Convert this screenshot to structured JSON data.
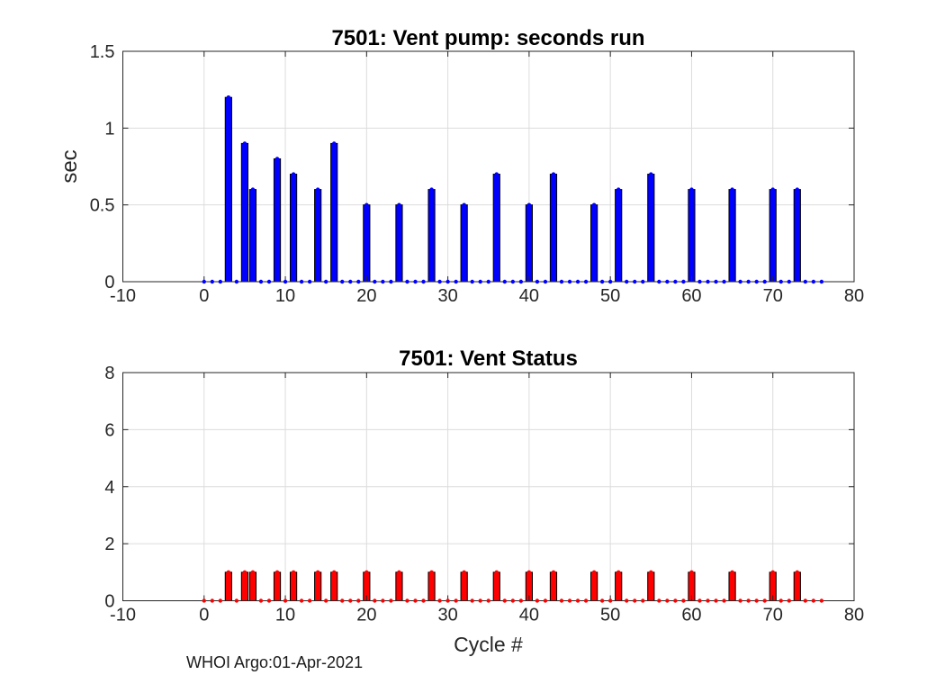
{
  "figure": {
    "footer": "WHOI Argo:01-Apr-2021",
    "background_color": "#ffffff",
    "axis_color": "#262626",
    "grid_color": "#dcdcdc",
    "text_color": "#262626"
  },
  "chart_data": [
    {
      "type": "bar",
      "name": "vent-pump-chart",
      "title": "7501: Vent pump: seconds run",
      "ylabel": "sec",
      "xlim": [
        -10,
        80
      ],
      "ylim": [
        0,
        1.5
      ],
      "xtick_values": [
        -10,
        0,
        10,
        20,
        30,
        40,
        50,
        60,
        70,
        80
      ],
      "xtick_labels": [
        "-10",
        "0",
        "10",
        "20",
        "30",
        "40",
        "50",
        "60",
        "70",
        "80"
      ],
      "ytick_values": [
        0,
        0.5,
        1,
        1.5
      ],
      "ytick_labels": [
        "0",
        "0.5",
        "1",
        "1.5"
      ],
      "grid": true,
      "legend": "none",
      "bar_color": "#0000ff",
      "edge_color": "#000000",
      "marker_color": "#0000ff",
      "cycles": [
        0,
        1,
        2,
        3,
        4,
        5,
        6,
        7,
        8,
        9,
        10,
        11,
        12,
        13,
        14,
        15,
        16,
        17,
        18,
        19,
        20,
        21,
        22,
        23,
        24,
        25,
        26,
        27,
        28,
        29,
        30,
        31,
        32,
        33,
        34,
        35,
        36,
        37,
        38,
        39,
        40,
        41,
        42,
        43,
        44,
        45,
        46,
        47,
        48,
        49,
        50,
        51,
        52,
        53,
        54,
        55,
        56,
        57,
        58,
        59,
        60,
        61,
        62,
        63,
        64,
        65,
        66,
        67,
        68,
        69,
        70,
        71,
        72,
        73,
        74,
        75,
        76
      ],
      "values": [
        0,
        0,
        0,
        1.2,
        0,
        0.9,
        0.6,
        0,
        0,
        0.8,
        0,
        0.7,
        0,
        0,
        0.6,
        0,
        0.9,
        0,
        0,
        0,
        0.5,
        0,
        0,
        0,
        0.5,
        0,
        0,
        0,
        0.6,
        0,
        0,
        0,
        0.5,
        0,
        0,
        0,
        0.7,
        0,
        0,
        0,
        0.5,
        0,
        0,
        0.7,
        0,
        0,
        0,
        0,
        0.5,
        0,
        0,
        0.6,
        0,
        0,
        0,
        0.7,
        0,
        0,
        0,
        0,
        0.6,
        0,
        0,
        0,
        0,
        0.6,
        0,
        0,
        0,
        0,
        0.6,
        0,
        0,
        0.6,
        0,
        0,
        0
      ]
    },
    {
      "type": "bar",
      "name": "vent-status-chart",
      "title": "7501: Vent Status",
      "xlabel": "Cycle #",
      "xlim": [
        -10,
        80
      ],
      "ylim": [
        0,
        8
      ],
      "xtick_values": [
        -10,
        0,
        10,
        20,
        30,
        40,
        50,
        60,
        70,
        80
      ],
      "xtick_labels": [
        "-10",
        "0",
        "10",
        "20",
        "30",
        "40",
        "50",
        "60",
        "70",
        "80"
      ],
      "ytick_values": [
        0,
        2,
        4,
        6,
        8
      ],
      "ytick_labels": [
        "0",
        "2",
        "4",
        "6",
        "8"
      ],
      "grid": true,
      "legend": "none",
      "bar_color": "#ff0000",
      "edge_color": "#000000",
      "marker_color": "#ff0000",
      "cycles": [
        0,
        1,
        2,
        3,
        4,
        5,
        6,
        7,
        8,
        9,
        10,
        11,
        12,
        13,
        14,
        15,
        16,
        17,
        18,
        19,
        20,
        21,
        22,
        23,
        24,
        25,
        26,
        27,
        28,
        29,
        30,
        31,
        32,
        33,
        34,
        35,
        36,
        37,
        38,
        39,
        40,
        41,
        42,
        43,
        44,
        45,
        46,
        47,
        48,
        49,
        50,
        51,
        52,
        53,
        54,
        55,
        56,
        57,
        58,
        59,
        60,
        61,
        62,
        63,
        64,
        65,
        66,
        67,
        68,
        69,
        70,
        71,
        72,
        73,
        74,
        75,
        76
      ],
      "values": [
        0,
        0,
        0,
        1,
        0,
        1,
        1,
        0,
        0,
        1,
        0,
        1,
        0,
        0,
        1,
        0,
        1,
        0,
        0,
        0,
        1,
        0,
        0,
        0,
        1,
        0,
        0,
        0,
        1,
        0,
        0,
        0,
        1,
        0,
        0,
        0,
        1,
        0,
        0,
        0,
        1,
        0,
        0,
        1,
        0,
        0,
        0,
        0,
        1,
        0,
        0,
        1,
        0,
        0,
        0,
        1,
        0,
        0,
        0,
        0,
        1,
        0,
        0,
        0,
        0,
        1,
        0,
        0,
        0,
        0,
        1,
        0,
        0,
        1,
        0,
        0,
        0
      ]
    }
  ]
}
